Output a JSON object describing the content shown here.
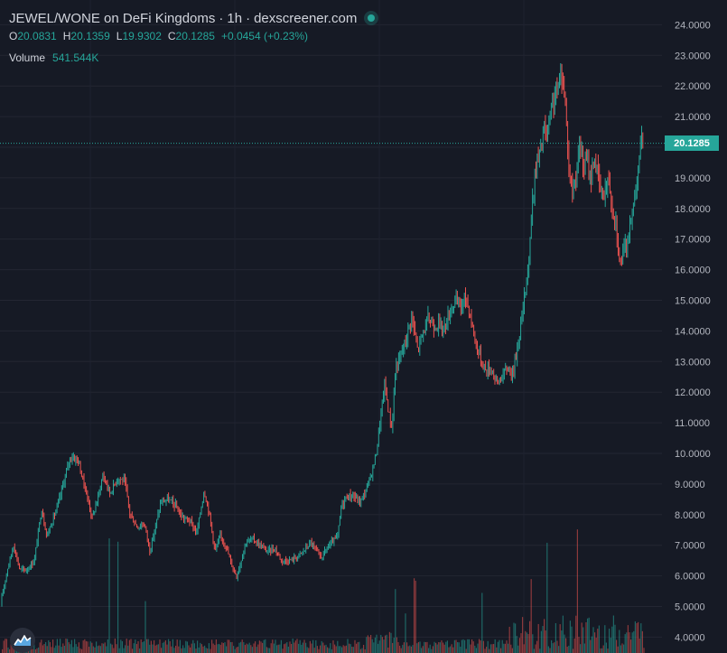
{
  "header": {
    "pair": "JEWEL/WONE on DeFi Kingdoms",
    "interval": "1h",
    "source": "dexscreener.com"
  },
  "ohlc": {
    "open_label": "O",
    "open": "20.0831",
    "high_label": "H",
    "high": "20.1359",
    "low_label": "L",
    "low": "19.9302",
    "close_label": "C",
    "close": "20.1285",
    "change": "+0.0454 (+0.23%)"
  },
  "volume": {
    "label": "Volume",
    "value": "541.544K"
  },
  "last_price": "20.1285",
  "colors": {
    "up": "#26a69a",
    "down": "#ef5350",
    "background": "#161a25",
    "grid": "#232632"
  },
  "logo_icon": "dexscreener-logo-icon",
  "chart_data": {
    "type": "candlestick",
    "y_axis_side": "right",
    "y_tick_labels": [
      "4.0000",
      "5.0000",
      "6.0000",
      "7.0000",
      "8.0000",
      "9.0000",
      "10.0000",
      "11.0000",
      "12.0000",
      "13.0000",
      "14.0000",
      "15.0000",
      "16.0000",
      "17.0000",
      "18.0000",
      "19.0000",
      "20.0000",
      "21.0000",
      "22.0000",
      "23.0000",
      "24.0000"
    ],
    "ylim": [
      3.6,
      24.7
    ],
    "last_price_line": 20.1285,
    "grid": true,
    "close_path": [
      [
        0,
        5.0
      ],
      [
        8,
        6.2
      ],
      [
        15,
        7.0
      ],
      [
        22,
        6.2
      ],
      [
        30,
        6.2
      ],
      [
        38,
        6.5
      ],
      [
        46,
        8.2
      ],
      [
        52,
        7.3
      ],
      [
        58,
        7.8
      ],
      [
        64,
        8.3
      ],
      [
        70,
        9.0
      ],
      [
        78,
        9.9
      ],
      [
        86,
        9.8
      ],
      [
        94,
        8.9
      ],
      [
        102,
        7.9
      ],
      [
        108,
        8.5
      ],
      [
        114,
        9.3
      ],
      [
        122,
        8.7
      ],
      [
        130,
        9.2
      ],
      [
        138,
        9.1
      ],
      [
        144,
        8.0
      ],
      [
        152,
        7.6
      ],
      [
        160,
        7.7
      ],
      [
        166,
        6.8
      ],
      [
        172,
        7.6
      ],
      [
        178,
        8.4
      ],
      [
        186,
        8.5
      ],
      [
        194,
        8.3
      ],
      [
        202,
        7.9
      ],
      [
        210,
        7.8
      ],
      [
        218,
        7.4
      ],
      [
        226,
        8.8
      ],
      [
        232,
        8.0
      ],
      [
        238,
        6.8
      ],
      [
        244,
        7.3
      ],
      [
        250,
        7.0
      ],
      [
        256,
        6.4
      ],
      [
        262,
        6.0
      ],
      [
        266,
        6.4
      ],
      [
        272,
        7.1
      ],
      [
        280,
        7.2
      ],
      [
        288,
        7.0
      ],
      [
        296,
        6.8
      ],
      [
        304,
        6.9
      ],
      [
        312,
        6.5
      ],
      [
        320,
        6.5
      ],
      [
        328,
        6.6
      ],
      [
        336,
        6.8
      ],
      [
        344,
        7.1
      ],
      [
        350,
        6.8
      ],
      [
        356,
        6.6
      ],
      [
        362,
        6.9
      ],
      [
        368,
        7.1
      ],
      [
        374,
        7.3
      ],
      [
        378,
        8.3
      ],
      [
        384,
        8.6
      ],
      [
        392,
        8.6
      ],
      [
        398,
        8.4
      ],
      [
        404,
        8.7
      ],
      [
        410,
        9.2
      ],
      [
        416,
        9.9
      ],
      [
        422,
        11.3
      ],
      [
        426,
        12.3
      ],
      [
        430,
        11.4
      ],
      [
        434,
        10.8
      ],
      [
        438,
        12.8
      ],
      [
        444,
        13.2
      ],
      [
        450,
        13.8
      ],
      [
        456,
        14.5
      ],
      [
        462,
        13.4
      ],
      [
        468,
        13.9
      ],
      [
        474,
        14.4
      ],
      [
        480,
        14.2
      ],
      [
        486,
        14.2
      ],
      [
        492,
        14.1
      ],
      [
        498,
        14.6
      ],
      [
        504,
        15.0
      ],
      [
        510,
        14.8
      ],
      [
        516,
        15.1
      ],
      [
        520,
        14.6
      ],
      [
        526,
        13.7
      ],
      [
        532,
        13.1
      ],
      [
        538,
        12.7
      ],
      [
        544,
        12.8
      ],
      [
        550,
        12.3
      ],
      [
        556,
        12.5
      ],
      [
        562,
        12.8
      ],
      [
        568,
        12.6
      ],
      [
        574,
        13.7
      ],
      [
        580,
        14.9
      ],
      [
        586,
        16.5
      ],
      [
        590,
        18.4
      ],
      [
        594,
        19.5
      ],
      [
        598,
        19.8
      ],
      [
        602,
        20.6
      ],
      [
        606,
        20.3
      ],
      [
        610,
        21.1
      ],
      [
        614,
        21.7
      ],
      [
        618,
        21.9
      ],
      [
        622,
        22.4
      ],
      [
        626,
        21.5
      ],
      [
        630,
        19.3
      ],
      [
        634,
        18.5
      ],
      [
        638,
        19.2
      ],
      [
        642,
        20.1
      ],
      [
        646,
        19.3
      ],
      [
        650,
        19.6
      ],
      [
        654,
        18.9
      ],
      [
        658,
        19.7
      ],
      [
        662,
        19.1
      ],
      [
        666,
        18.4
      ],
      [
        670,
        18.6
      ],
      [
        674,
        19.0
      ],
      [
        678,
        18.0
      ],
      [
        682,
        17.6
      ],
      [
        686,
        16.2
      ],
      [
        690,
        16.5
      ],
      [
        694,
        16.9
      ],
      [
        698,
        17.4
      ],
      [
        702,
        18.3
      ],
      [
        706,
        19.2
      ],
      [
        710,
        20.2
      ],
      [
        713,
        20.1
      ]
    ]
  }
}
